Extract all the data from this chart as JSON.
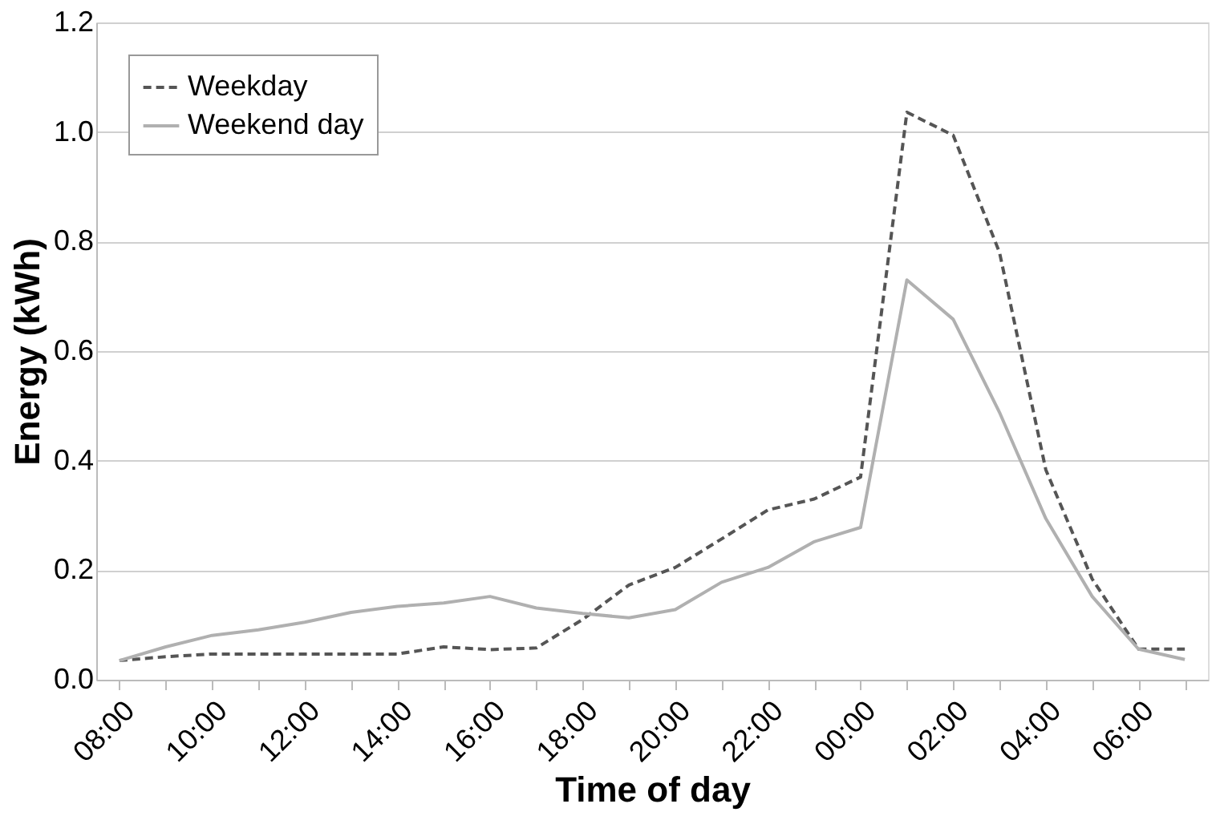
{
  "chart_data": {
    "type": "line",
    "xlabel": "Time of day",
    "ylabel": "Energy (kWh)",
    "categories": [
      "08:00",
      null,
      "10:00",
      null,
      "12:00",
      null,
      "14:00",
      null,
      "16:00",
      null,
      "18:00",
      null,
      "20:00",
      null,
      "22:00",
      null,
      "00:00",
      null,
      "02:00",
      null,
      "04:00",
      null,
      "06:00",
      null
    ],
    "series": [
      {
        "name": "Weekday",
        "color": "#555555",
        "line_style": "dashed",
        "values": [
          0.035,
          0.042,
          0.047,
          0.047,
          0.047,
          0.047,
          0.047,
          0.06,
          0.055,
          0.058,
          0.11,
          0.173,
          0.205,
          0.257,
          0.31,
          0.33,
          0.37,
          1.036,
          0.994,
          0.78,
          0.383,
          0.184,
          0.056,
          0.056
        ]
      },
      {
        "name": "Weekend day",
        "color": "#b0b0b0",
        "line_style": "solid",
        "values": [
          0.035,
          0.06,
          0.081,
          0.091,
          0.105,
          0.123,
          0.134,
          0.14,
          0.152,
          0.131,
          0.121,
          0.113,
          0.128,
          0.178,
          0.205,
          0.252,
          0.278,
          0.73,
          0.658,
          0.488,
          0.294,
          0.152,
          0.056,
          0.037
        ]
      }
    ],
    "ylim": [
      0,
      1.2
    ],
    "yticks": [
      {
        "value": 0,
        "label": "0.0"
      },
      0.2,
      0.4,
      0.6,
      0.8,
      {
        "value": 1,
        "label": "1.0"
      },
      1.2
    ],
    "grid": "y",
    "legend": "top left",
    "marker": "none"
  }
}
